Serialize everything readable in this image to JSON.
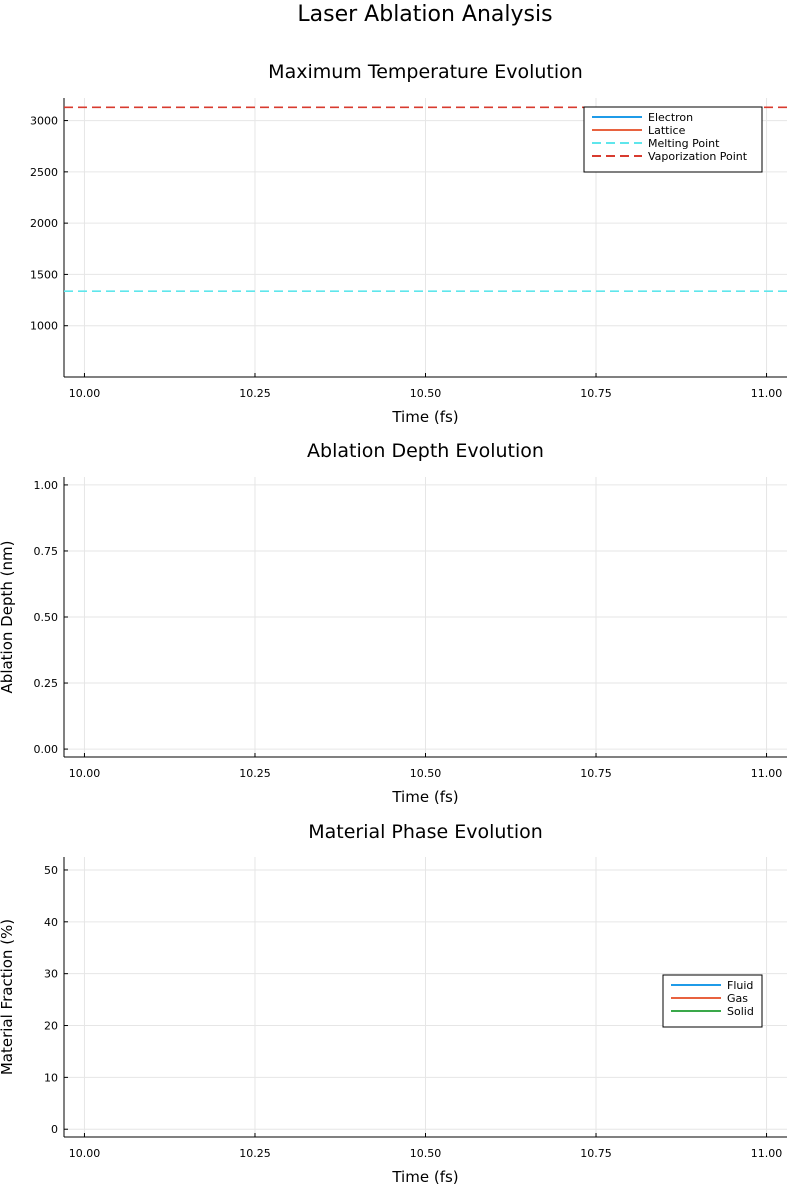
{
  "figure_title": "Laser Ablation Analysis",
  "chart_data": [
    {
      "type": "line",
      "title": "Maximum Temperature Evolution",
      "xlabel": "Time (fs)",
      "ylabel": "",
      "xlim": [
        9.97,
        11.03
      ],
      "ylim": [
        500,
        3220
      ],
      "xticks": [
        10.0,
        10.25,
        10.5,
        10.75,
        11.0
      ],
      "xtick_labels": [
        "10.00",
        "10.25",
        "10.50",
        "10.75",
        "11.00"
      ],
      "yticks": [
        1000,
        1500,
        2000,
        2500,
        3000
      ],
      "ytick_labels": [
        "1000",
        "1500",
        "2000",
        "2500",
        "3000"
      ],
      "grid": true,
      "legend_position": "top-right",
      "series": [
        {
          "name": "Electron",
          "color": "#1f9be8",
          "style": "solid",
          "x": [],
          "y": []
        },
        {
          "name": "Lattice",
          "color": "#e8623f",
          "style": "solid",
          "x": [],
          "y": []
        },
        {
          "name": "Melting Point",
          "color": "#5fe6ec",
          "style": "dashed",
          "hline": 1337
        },
        {
          "name": "Vaporization Point",
          "color": "#d83b2f",
          "style": "dashed",
          "hline": 3129
        }
      ]
    },
    {
      "type": "line",
      "title": "Ablation Depth Evolution",
      "xlabel": "Time (fs)",
      "ylabel": "Ablation Depth (nm)",
      "xlim": [
        9.97,
        11.03
      ],
      "ylim": [
        -0.03,
        1.03
      ],
      "xticks": [
        10.0,
        10.25,
        10.5,
        10.75,
        11.0
      ],
      "xtick_labels": [
        "10.00",
        "10.25",
        "10.50",
        "10.75",
        "11.00"
      ],
      "yticks": [
        0.0,
        0.25,
        0.5,
        0.75,
        1.0
      ],
      "ytick_labels": [
        "0.00",
        "0.25",
        "0.50",
        "0.75",
        "1.00"
      ],
      "grid": true,
      "series": []
    },
    {
      "type": "line",
      "title": "Material Phase Evolution",
      "xlabel": "Time (fs)",
      "ylabel": "Material Fraction (%)",
      "xlim": [
        9.97,
        11.03
      ],
      "ylim": [
        -1.5,
        52.5
      ],
      "xticks": [
        10.0,
        10.25,
        10.5,
        10.75,
        11.0
      ],
      "xtick_labels": [
        "10.00",
        "10.25",
        "10.50",
        "10.75",
        "11.00"
      ],
      "yticks": [
        0,
        10,
        20,
        30,
        40,
        50
      ],
      "ytick_labels": [
        "0",
        "10",
        "20",
        "30",
        "40",
        "50"
      ],
      "grid": true,
      "legend_position": "right",
      "series": [
        {
          "name": "Fluid",
          "color": "#1f9be8",
          "style": "solid",
          "x": [],
          "y": []
        },
        {
          "name": "Gas",
          "color": "#e8623f",
          "style": "solid",
          "x": [],
          "y": []
        },
        {
          "name": "Solid",
          "color": "#3aa84a",
          "style": "solid",
          "x": [],
          "y": []
        }
      ]
    }
  ]
}
